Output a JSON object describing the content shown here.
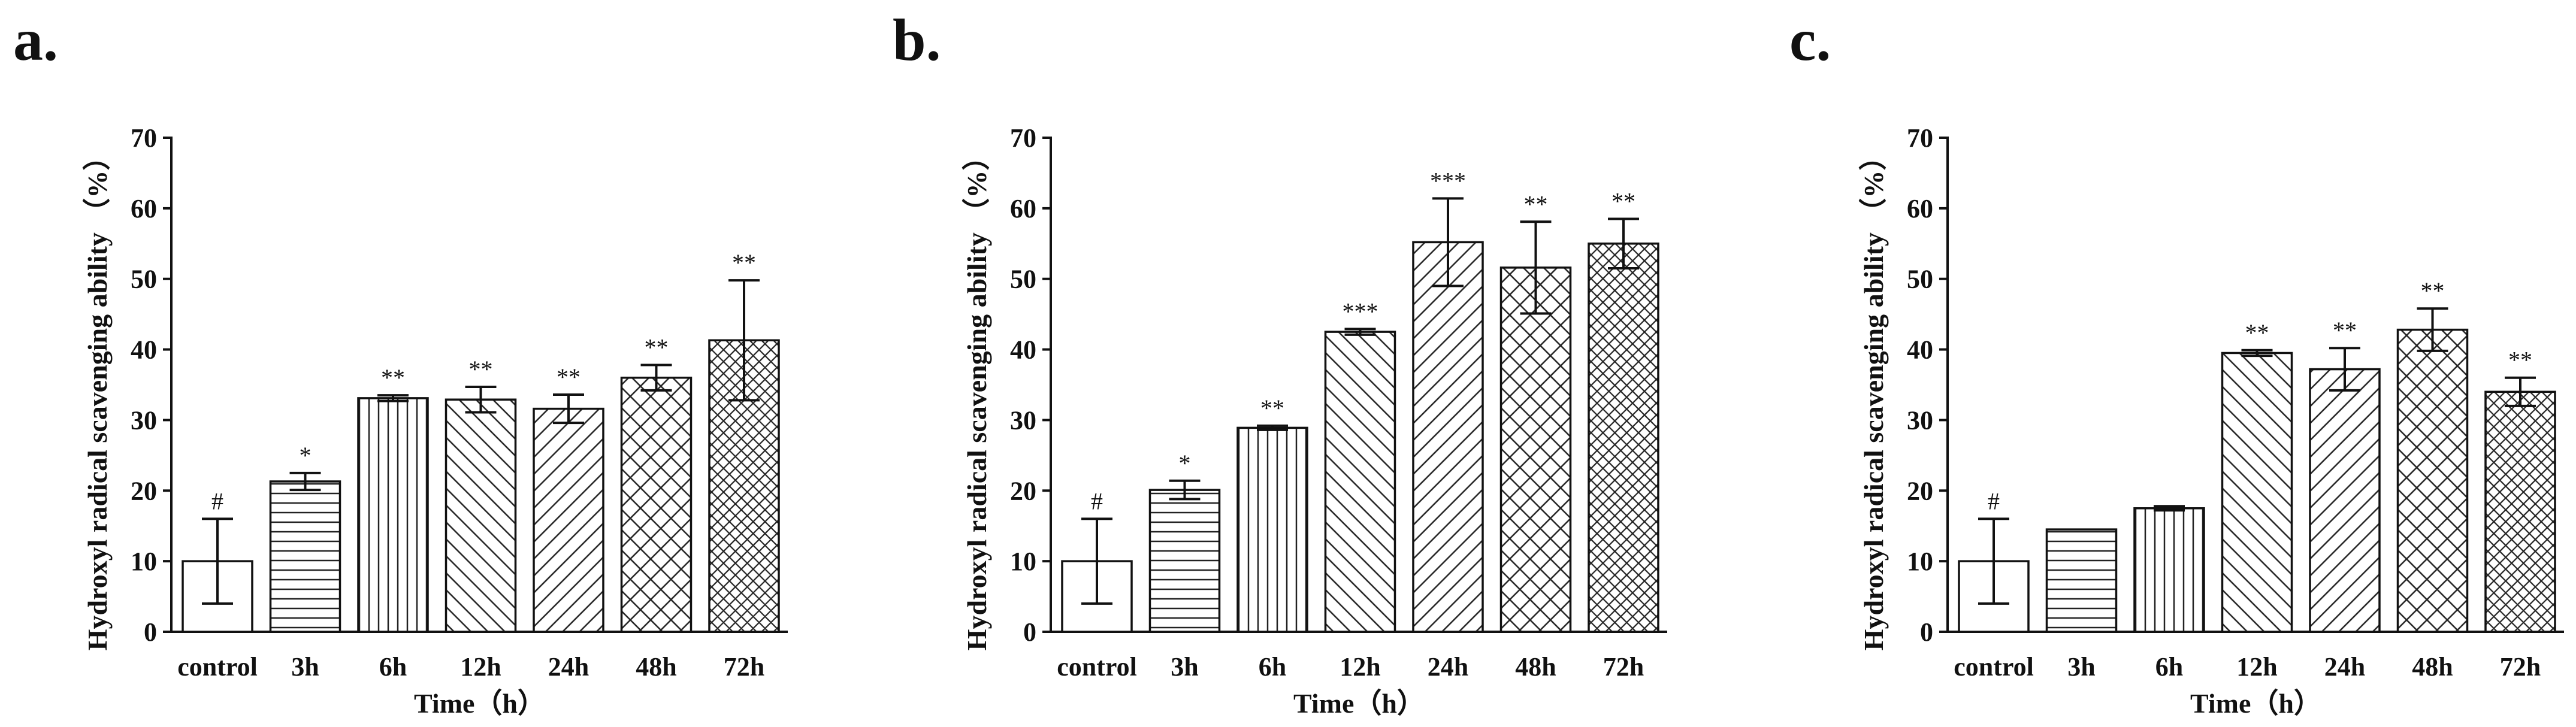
{
  "chart_data": [
    {
      "type": "bar",
      "panel_label": "a.",
      "title": "",
      "xlabel": "Time（h）",
      "ylabel": "Hydroxyl radical scavenging ability （%）",
      "ylim": [
        0,
        70
      ],
      "yticks": [
        "0",
        "10",
        "20",
        "30",
        "40",
        "50",
        "60",
        "70"
      ],
      "categories": [
        "control",
        "3h",
        "6h",
        "12h",
        "24h",
        "48h",
        "72h"
      ],
      "values": [
        10.0,
        21.3,
        33.1,
        32.9,
        31.6,
        36.0,
        41.3
      ],
      "errors": [
        6.0,
        1.2,
        0.4,
        1.8,
        2.0,
        1.8,
        8.5
      ],
      "significance": [
        "#",
        "*",
        "**",
        "**",
        "**",
        "**",
        "**"
      ],
      "patterns": [
        "none",
        "horizontal",
        "vertical",
        "diag-right",
        "diag-left",
        "crosshatch",
        "crosshatch-dense"
      ],
      "grid": false
    },
    {
      "type": "bar",
      "panel_label": "b.",
      "title": "",
      "xlabel": "Time（h）",
      "ylabel": "Hydroxyl radical scavenging ability （%）",
      "ylim": [
        0,
        70
      ],
      "yticks": [
        "0",
        "10",
        "20",
        "30",
        "40",
        "50",
        "60",
        "70"
      ],
      "categories": [
        "control",
        "3h",
        "6h",
        "12h",
        "24h",
        "48h",
        "72h"
      ],
      "values": [
        10.0,
        20.1,
        28.9,
        42.5,
        55.2,
        51.6,
        55.0
      ],
      "errors": [
        6.0,
        1.3,
        0.3,
        0.4,
        6.2,
        6.5,
        3.5
      ],
      "significance": [
        "#",
        "*",
        "**",
        "***",
        "***",
        "**",
        "**"
      ],
      "patterns": [
        "none",
        "horizontal",
        "vertical",
        "diag-right",
        "diag-left",
        "crosshatch",
        "crosshatch-dense"
      ],
      "grid": false
    },
    {
      "type": "bar",
      "panel_label": "c.",
      "title": "",
      "xlabel": "Time（h）",
      "ylabel": "Hydroxyl radical scavenging ability （%）",
      "ylim": [
        0,
        70
      ],
      "yticks": [
        "0",
        "10",
        "20",
        "30",
        "40",
        "50",
        "60",
        "70"
      ],
      "categories": [
        "control",
        "3h",
        "6h",
        "12h",
        "24h",
        "48h",
        "72h"
      ],
      "values": [
        10.0,
        14.5,
        17.5,
        39.5,
        37.2,
        42.8,
        34.0
      ],
      "errors": [
        6.0,
        0.0,
        0.3,
        0.4,
        3.0,
        3.0,
        2.0
      ],
      "significance": [
        "#",
        "",
        "",
        "**",
        "**",
        "**",
        "**"
      ],
      "patterns": [
        "none",
        "horizontal",
        "vertical",
        "diag-right",
        "diag-left",
        "crosshatch",
        "crosshatch-dense"
      ],
      "grid": false
    }
  ]
}
